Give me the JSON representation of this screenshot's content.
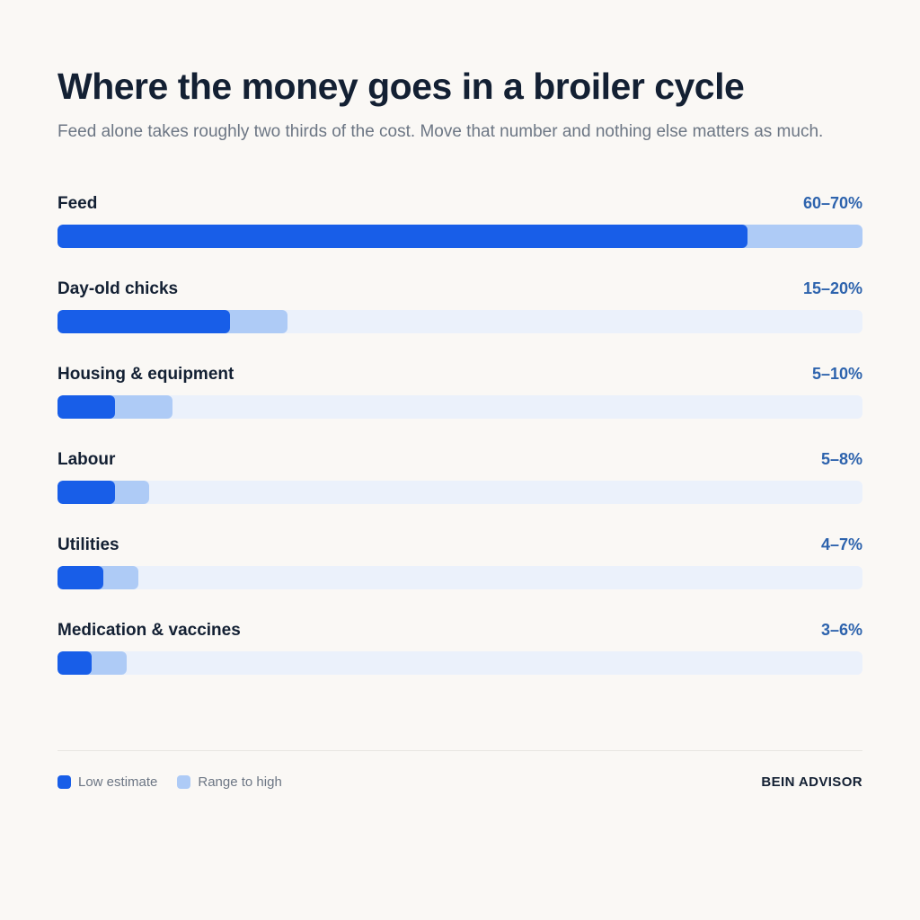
{
  "header": {
    "title": "Where the money goes in a broiler cycle",
    "subtitle": "Feed alone takes roughly two thirds of the cost. Move that number and nothing else matters as much."
  },
  "chart_data": {
    "type": "bar",
    "orientation": "horizontal",
    "title": "Where the money goes in a broiler cycle",
    "xlim": [
      0,
      70
    ],
    "categories": [
      "Feed",
      "Day-old chicks",
      "Housing & equipment",
      "Labour",
      "Utilities",
      "Medication & vaccines"
    ],
    "value_labels": [
      "60–70%",
      "15–20%",
      "5–10%",
      "5–8%",
      "4–7%",
      "3–6%"
    ],
    "series": [
      {
        "name": "Low estimate",
        "values": [
          60,
          15,
          5,
          5,
          4,
          3
        ]
      },
      {
        "name": "Range to high",
        "values": [
          70,
          20,
          10,
          8,
          7,
          6
        ]
      }
    ],
    "legend_position": "bottom-left",
    "grid": false
  },
  "legend": {
    "low_label": "Low estimate",
    "high_label": "Range to high"
  },
  "colors": {
    "low": "#185ee8",
    "high": "#aecbf6",
    "track": "#ebf1fb",
    "value_text": "#2d63ad"
  },
  "footer": {
    "brand": "BEIN ADVISOR"
  }
}
